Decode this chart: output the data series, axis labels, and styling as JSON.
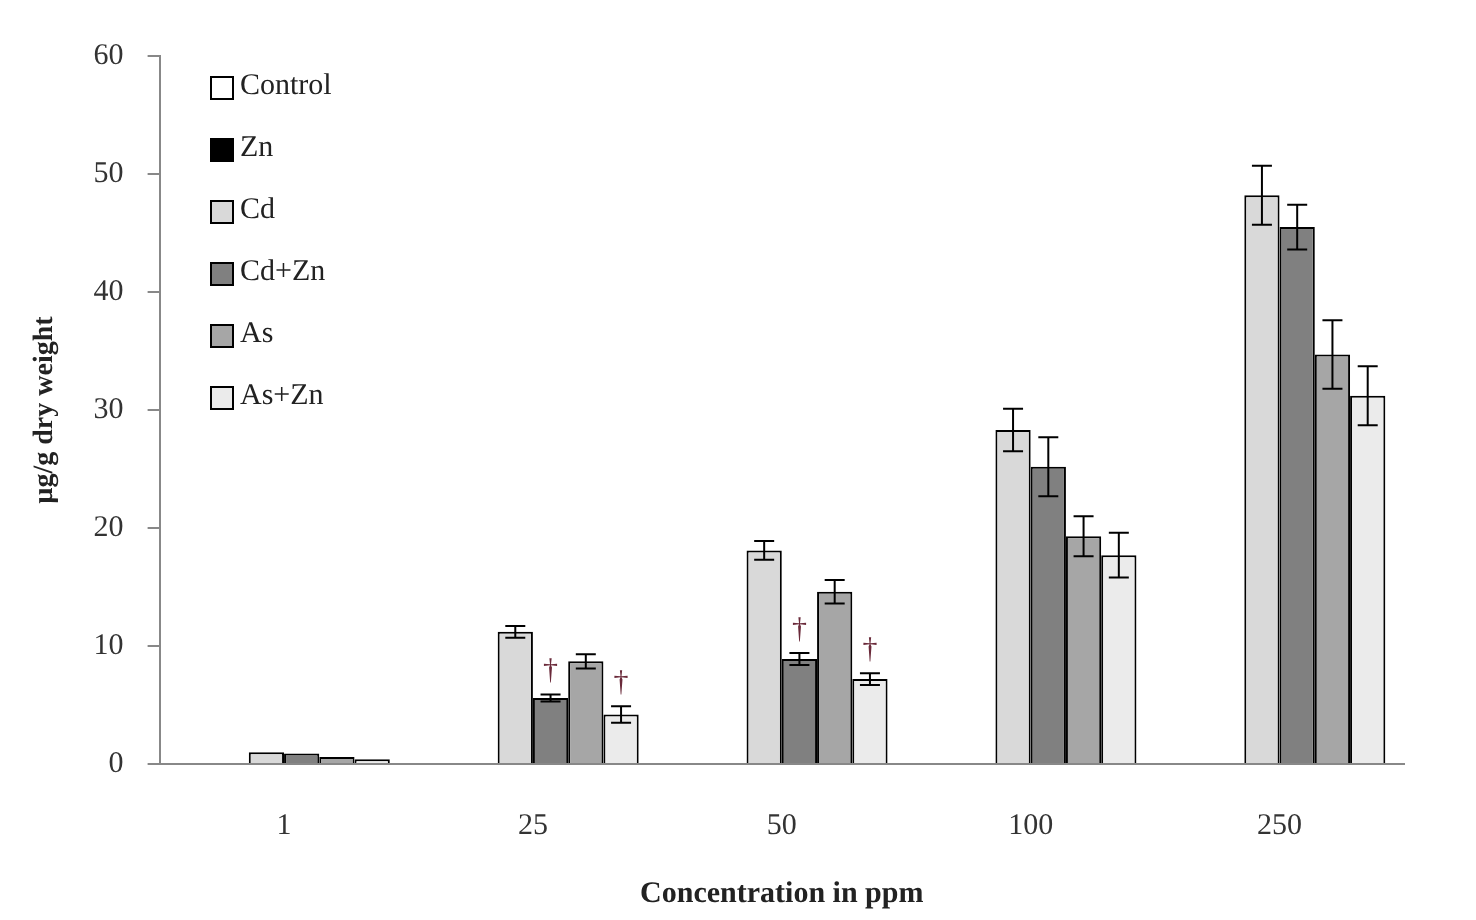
{
  "chart_data": {
    "type": "bar",
    "xlabel": "Concentration in ppm",
    "ylabel": "µg/g dry weight",
    "categories": [
      "1",
      "25",
      "50",
      "100",
      "250"
    ],
    "series": [
      {
        "name": "Control",
        "color": "#ffffff",
        "values": [
          null,
          null,
          null,
          null,
          null
        ]
      },
      {
        "name": "Zn",
        "color": "#000000",
        "values": [
          null,
          null,
          null,
          null,
          null
        ]
      },
      {
        "name": "Cd",
        "color": "#d9d9d9",
        "values": [
          1.0,
          11.2,
          18.1,
          28.3,
          48.2
        ],
        "errors": [
          null,
          0.5,
          0.8,
          1.8,
          2.5
        ]
      },
      {
        "name": "Cd+Zn",
        "color": "#808080",
        "values": [
          0.9,
          5.6,
          8.9,
          25.2,
          45.5
        ],
        "errors": [
          null,
          0.3,
          0.5,
          2.5,
          1.9
        ],
        "value_labels": [
          null,
          "†",
          "†",
          null,
          null
        ]
      },
      {
        "name": "As",
        "color": "#a6a6a6",
        "values": [
          0.6,
          8.7,
          14.6,
          19.3,
          34.7
        ],
        "errors": [
          null,
          0.6,
          1.0,
          1.7,
          2.9
        ]
      },
      {
        "name": "As+Zn",
        "color": "#ebebeb",
        "values": [
          0.4,
          4.2,
          7.2,
          17.7,
          31.2
        ],
        "errors": [
          null,
          0.7,
          0.5,
          1.9,
          2.5
        ],
        "value_labels": [
          null,
          "†",
          "†",
          null,
          null
        ]
      }
    ],
    "ylim": [
      0,
      60
    ],
    "yticks": [
      0,
      10,
      20,
      30,
      40,
      50,
      60
    ],
    "grid": false,
    "legend": "top left"
  }
}
